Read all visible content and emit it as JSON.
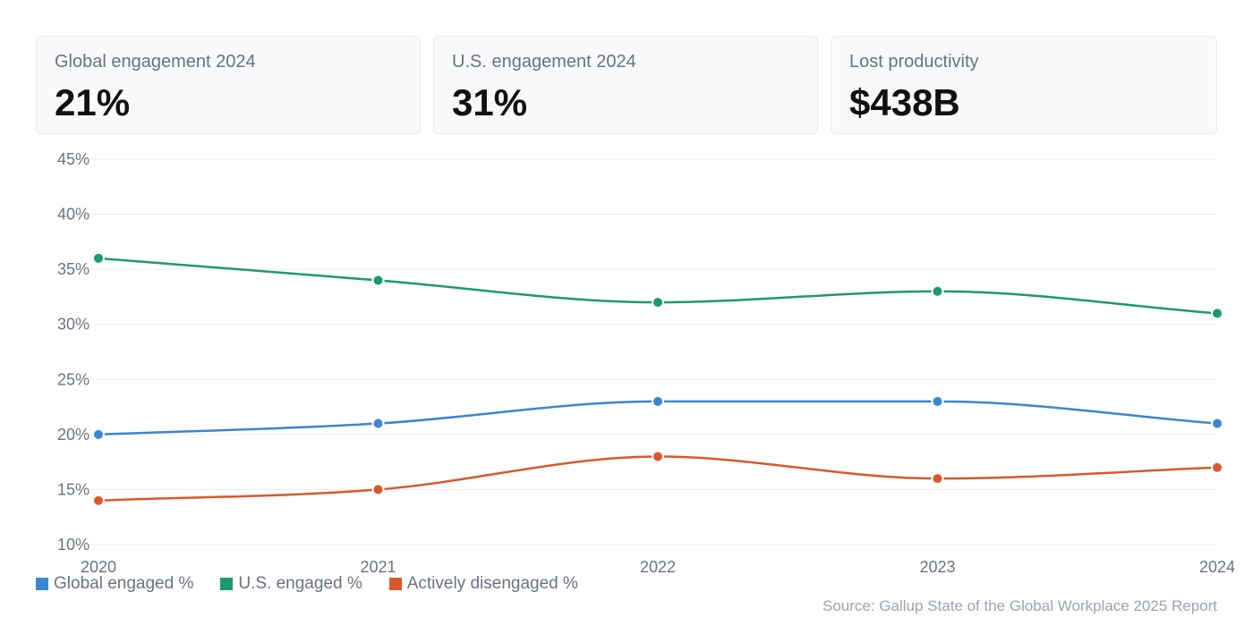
{
  "cards": [
    {
      "label": "Global engagement 2024",
      "value": "21%"
    },
    {
      "label": "U.S. engagement 2024",
      "value": "31%"
    },
    {
      "label": "Lost productivity",
      "value": "$438B"
    }
  ],
  "chart_data": {
    "type": "line",
    "x": [
      "2020",
      "2021",
      "2022",
      "2023",
      "2024"
    ],
    "ylim": [
      10,
      45
    ],
    "yticks": [
      "10%",
      "15%",
      "20%",
      "25%",
      "30%",
      "35%",
      "40%",
      "45%"
    ],
    "grid": true,
    "legend_position": "bottom-left",
    "series": [
      {
        "name": "Global engaged %",
        "color": "#3b86d1",
        "values": [
          20,
          21,
          23,
          23,
          21
        ]
      },
      {
        "name": "U.S. engaged %",
        "color": "#1b9a6e",
        "values": [
          36,
          34,
          32,
          33,
          31
        ]
      },
      {
        "name": "Actively disengaged %",
        "color": "#d9582b",
        "values": [
          14,
          15,
          18,
          16,
          17
        ]
      }
    ]
  },
  "source": "Source: Gallup State of the Global Workplace 2025 Report"
}
